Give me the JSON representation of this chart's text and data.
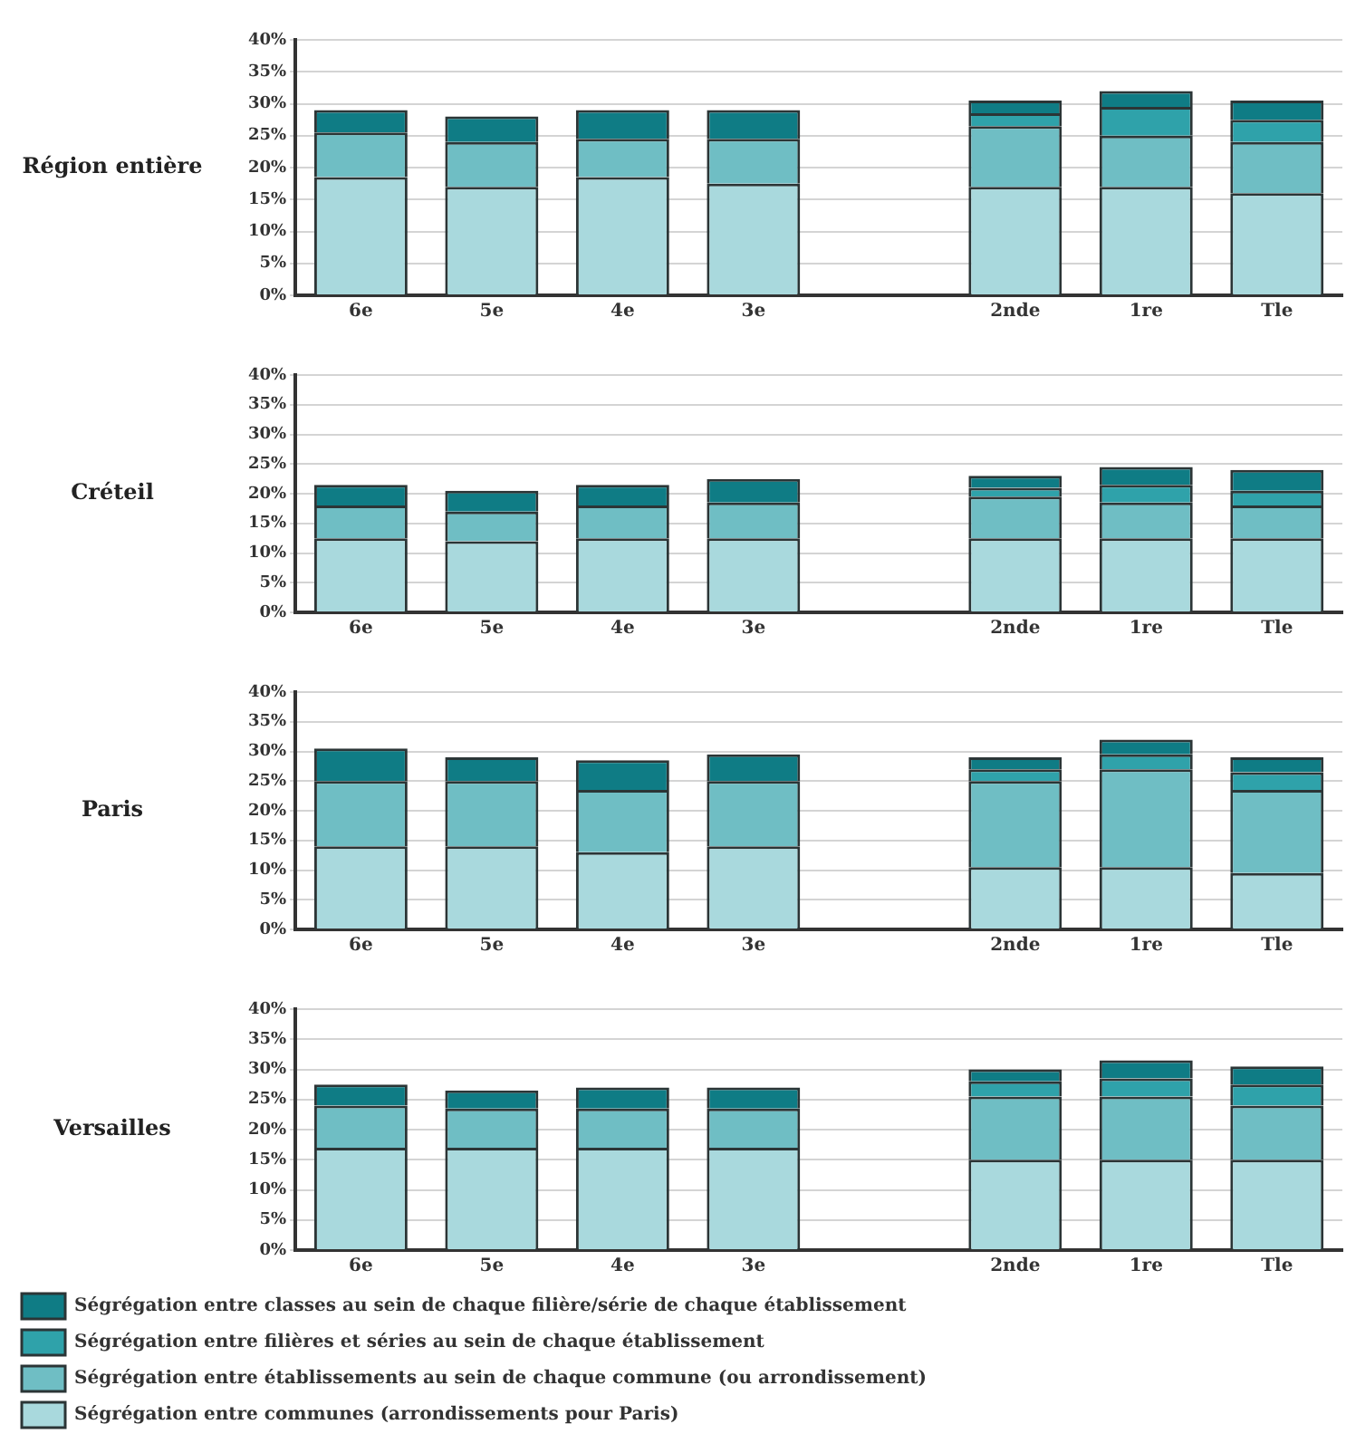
{
  "chart_data": [
    {
      "type": "bar",
      "title": "Région entière",
      "stacked": true,
      "categories": [
        "6e",
        "5e",
        "4e",
        "3e",
        null,
        "2nde",
        "1re",
        "Tle"
      ],
      "ylim": [
        0,
        40
      ],
      "yticks": [
        {
          "value": 0,
          "label": "0%"
        },
        {
          "value": 5,
          "label": "5%"
        },
        {
          "value": 10,
          "label": "10%"
        },
        {
          "value": 15,
          "label": "15%"
        },
        {
          "value": 20,
          "label": "20%"
        },
        {
          "value": 25,
          "label": "25%"
        },
        {
          "value": 30,
          "label": "30%"
        },
        {
          "value": 35,
          "label": "35%"
        },
        {
          "value": 40,
          "label": "40%"
        }
      ],
      "grid": "y",
      "legend": false,
      "series": [
        {
          "color": "#a9d9dd",
          "values": [
            18.5,
            17,
            18.5,
            17.5,
            null,
            17,
            17,
            16
          ]
        },
        {
          "color": "#6fbec4",
          "values": [
            7,
            7,
            6,
            7,
            null,
            9.5,
            8,
            8
          ]
        },
        {
          "color": "#2fa2aa",
          "values": [
            null,
            null,
            null,
            null,
            null,
            2,
            4.5,
            3.5
          ]
        },
        {
          "color": "#0f7c85",
          "values": [
            3.5,
            4,
            4.5,
            4.5,
            null,
            2,
            2.5,
            3
          ]
        }
      ]
    },
    {
      "type": "bar",
      "title": "Créteil",
      "stacked": true,
      "categories": [
        "6e",
        "5e",
        "4e",
        "3e",
        null,
        "2nde",
        "1re",
        "Tle"
      ],
      "ylim": [
        0,
        40
      ],
      "yticks": [
        {
          "value": 0,
          "label": "0%"
        },
        {
          "value": 5,
          "label": "5%"
        },
        {
          "value": 10,
          "label": "10%"
        },
        {
          "value": 15,
          "label": "15%"
        },
        {
          "value": 20,
          "label": "20%"
        },
        {
          "value": 25,
          "label": "25%"
        },
        {
          "value": 30,
          "label": "30%"
        },
        {
          "value": 35,
          "label": "35%"
        },
        {
          "value": 40,
          "label": "40%"
        }
      ],
      "grid": "y",
      "legend": false,
      "series": [
        {
          "color": "#a9d9dd",
          "values": [
            12.5,
            12,
            12.5,
            12.5,
            null,
            12.5,
            12.5,
            12.5
          ]
        },
        {
          "color": "#6fbec4",
          "values": [
            5.5,
            5,
            5.5,
            6,
            null,
            7,
            6,
            5.5
          ]
        },
        {
          "color": "#2fa2aa",
          "values": [
            null,
            null,
            null,
            null,
            null,
            1.5,
            3,
            2.5
          ]
        },
        {
          "color": "#0f7c85",
          "values": [
            3.5,
            3.5,
            3.5,
            4,
            null,
            2,
            3,
            3.5
          ]
        }
      ]
    },
    {
      "type": "bar",
      "title": "Paris",
      "stacked": true,
      "categories": [
        "6e",
        "5e",
        "4e",
        "3e",
        null,
        "2nde",
        "1re",
        "Tle"
      ],
      "ylim": [
        0,
        40
      ],
      "yticks": [
        {
          "value": 0,
          "label": "0%"
        },
        {
          "value": 5,
          "label": "5%"
        },
        {
          "value": 10,
          "label": "10%"
        },
        {
          "value": 15,
          "label": "15%"
        },
        {
          "value": 20,
          "label": "20%"
        },
        {
          "value": 25,
          "label": "25%"
        },
        {
          "value": 30,
          "label": "30%"
        },
        {
          "value": 35,
          "label": "35%"
        },
        {
          "value": 40,
          "label": "40%"
        }
      ],
      "grid": "y",
      "legend": false,
      "series": [
        {
          "color": "#a9d9dd",
          "values": [
            14,
            14,
            13,
            14,
            null,
            10.5,
            10.5,
            9.5
          ]
        },
        {
          "color": "#6fbec4",
          "values": [
            11,
            11,
            10.5,
            11,
            null,
            14.5,
            16.5,
            14
          ]
        },
        {
          "color": "#2fa2aa",
          "values": [
            null,
            null,
            null,
            null,
            null,
            2,
            2.5,
            3
          ]
        },
        {
          "color": "#0f7c85",
          "values": [
            5.5,
            4,
            5,
            4.5,
            null,
            2,
            2.5,
            2.5
          ]
        }
      ]
    },
    {
      "type": "bar",
      "title": "Versailles",
      "stacked": true,
      "categories": [
        "6e",
        "5e",
        "4e",
        "3e",
        null,
        "2nde",
        "1re",
        "Tle"
      ],
      "ylim": [
        0,
        40
      ],
      "yticks": [
        {
          "value": 0,
          "label": "0%"
        },
        {
          "value": 5,
          "label": "5%"
        },
        {
          "value": 10,
          "label": "10%"
        },
        {
          "value": 15,
          "label": "15%"
        },
        {
          "value": 20,
          "label": "20%"
        },
        {
          "value": 25,
          "label": "25%"
        },
        {
          "value": 30,
          "label": "30%"
        },
        {
          "value": 35,
          "label": "35%"
        },
        {
          "value": 40,
          "label": "40%"
        }
      ],
      "grid": "y",
      "legend": "bottom",
      "series": [
        {
          "name": "Ségrégation entre communes (arrondissements pour Paris)",
          "color": "#a9d9dd",
          "values": [
            17,
            17,
            17,
            17,
            null,
            15,
            15,
            15
          ]
        },
        {
          "name": "Ségrégation entre établissements au sein de chaque commune (ou arrondissement)",
          "color": "#6fbec4",
          "values": [
            7,
            6.5,
            6.5,
            6.5,
            null,
            10.5,
            10.5,
            9
          ]
        },
        {
          "name": "Ségrégation entre filières et séries au sein de chaque établissement",
          "color": "#2fa2aa",
          "values": [
            null,
            null,
            null,
            null,
            null,
            2.5,
            3,
            3.5
          ]
        },
        {
          "name": "Ségrégation entre classes au sein de chaque filière/série de chaque établissement",
          "color": "#0f7c85",
          "values": [
            3.5,
            3,
            3.5,
            3.5,
            null,
            2,
            3,
            3
          ]
        }
      ]
    }
  ]
}
